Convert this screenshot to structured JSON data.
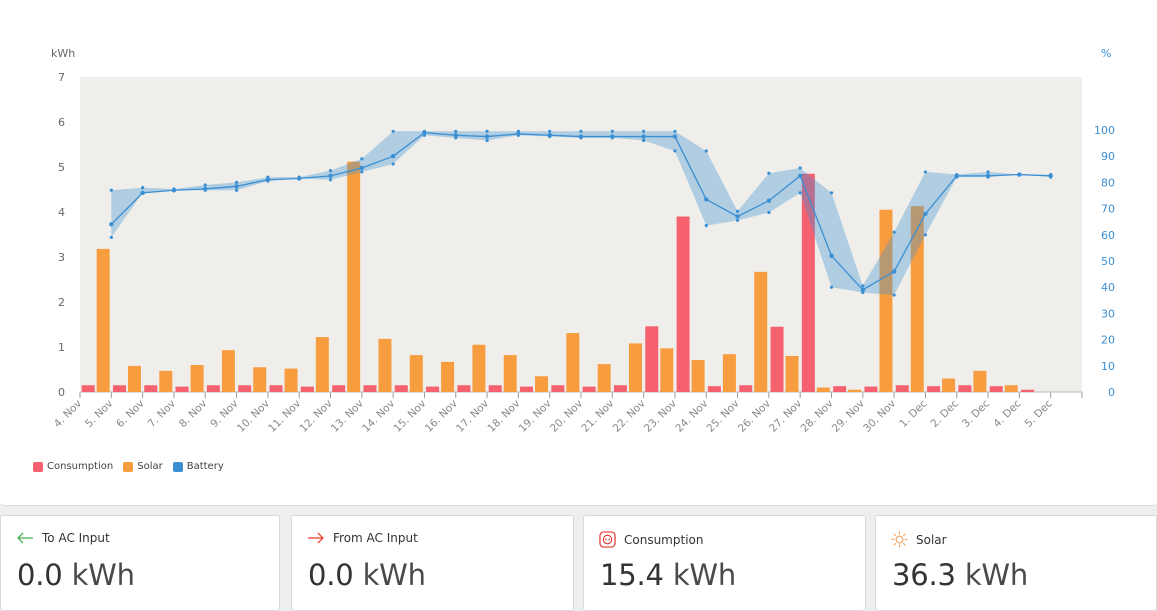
{
  "chart_data": {
    "type": "bar+line",
    "ylabel_left": "kWh",
    "ylabel_right": "%",
    "ylim_left": [
      0,
      7
    ],
    "ylim_right": [
      0,
      120
    ],
    "left_ticks": [
      "0",
      "1",
      "2",
      "3",
      "4",
      "5",
      "6",
      "7"
    ],
    "right_ticks": [
      "0",
      "10",
      "20",
      "30",
      "40",
      "50",
      "60",
      "70",
      "80",
      "90",
      "100"
    ],
    "categories": [
      "4. Nov",
      "5. Nov",
      "6. Nov",
      "7. Nov",
      "8. Nov",
      "9. Nov",
      "10. Nov",
      "11. Nov",
      "12. Nov",
      "13. Nov",
      "14. Nov",
      "15. Nov",
      "16. Nov",
      "17. Nov",
      "18. Nov",
      "19. Nov",
      "20. Nov",
      "21. Nov",
      "22. Nov",
      "23. Nov",
      "24. Nov",
      "25. Nov",
      "26. Nov",
      "27. Nov",
      "28. Nov",
      "29. Nov",
      "30. Nov",
      "1. Dec",
      "2. Dec",
      "3. Dec",
      "4. Dec",
      "5. Dec"
    ],
    "series": [
      {
        "name": "Consumption",
        "color": "#f6616f",
        "axis": "left",
        "values": [
          0.15,
          0.15,
          0.15,
          0.12,
          0.15,
          0.15,
          0.15,
          0.12,
          0.15,
          0.15,
          0.15,
          0.12,
          0.15,
          0.15,
          0.12,
          0.15,
          0.12,
          0.15,
          1.46,
          3.9,
          0.13,
          0.15,
          1.45,
          4.85,
          0.13,
          0.12,
          0.15,
          0.13,
          0.15,
          0.13,
          0.05,
          0.0
        ]
      },
      {
        "name": "Solar",
        "color": "#f89d3f",
        "axis": "left",
        "values": [
          3.18,
          0.58,
          0.47,
          0.6,
          0.93,
          0.55,
          0.52,
          1.22,
          5.12,
          1.18,
          0.82,
          0.67,
          1.05,
          0.82,
          0.35,
          1.31,
          0.62,
          1.08,
          0.97,
          0.71,
          0.84,
          2.67,
          0.8,
          0.1,
          0.05,
          4.05,
          4.13,
          0.3,
          0.47,
          0.15,
          0.0,
          0.0
        ]
      },
      {
        "name": "Battery",
        "color": "#3b8fd3",
        "axis": "right",
        "avg": [
          64,
          76,
          77,
          77.5,
          78.5,
          81,
          81.5,
          82.5,
          85.5,
          90,
          99,
          98,
          97.5,
          98.5,
          98,
          97.5,
          97.5,
          97.5,
          97.5,
          73.5,
          67,
          73,
          82.5,
          52,
          39,
          46,
          68,
          82.5,
          82.5,
          83,
          82.5
        ],
        "min": [
          59,
          76,
          77,
          77,
          77,
          80.5,
          81.5,
          81,
          84,
          87,
          98,
          97,
          96,
          98,
          97.5,
          97,
          97,
          96,
          92,
          63.5,
          65.5,
          68.5,
          76,
          40,
          38,
          37,
          60,
          82,
          82,
          83,
          82
        ],
        "max": [
          77,
          78,
          77.5,
          79,
          80,
          82,
          82,
          84.5,
          89,
          99.5,
          99.5,
          99.5,
          99.5,
          99.5,
          99.5,
          99.5,
          99.5,
          99.5,
          99.5,
          92,
          69,
          83.5,
          85.5,
          76,
          40.5,
          61,
          84,
          83,
          84,
          83,
          83
        ]
      }
    ]
  },
  "legend": [
    {
      "label": "Consumption",
      "color": "#f6616f"
    },
    {
      "label": "Solar",
      "color": "#f89d3f"
    },
    {
      "label": "Battery",
      "color": "#3b8fd3"
    }
  ],
  "cards": [
    {
      "title": "To AC Input",
      "value": "0.0",
      "unit": "kWh",
      "icon": "arrow-left-icon",
      "icon_color": "#4caf50"
    },
    {
      "title": "From AC Input",
      "value": "0.0",
      "unit": "kWh",
      "icon": "arrow-right-icon",
      "icon_color": "#f44336"
    },
    {
      "title": "Consumption",
      "value": "15.4",
      "unit": "kWh",
      "icon": "outlet-icon",
      "icon_color": "#e53935"
    },
    {
      "title": "Solar",
      "value": "36.3",
      "unit": "kWh",
      "icon": "sun-icon",
      "icon_color": "#f5a25d"
    }
  ]
}
